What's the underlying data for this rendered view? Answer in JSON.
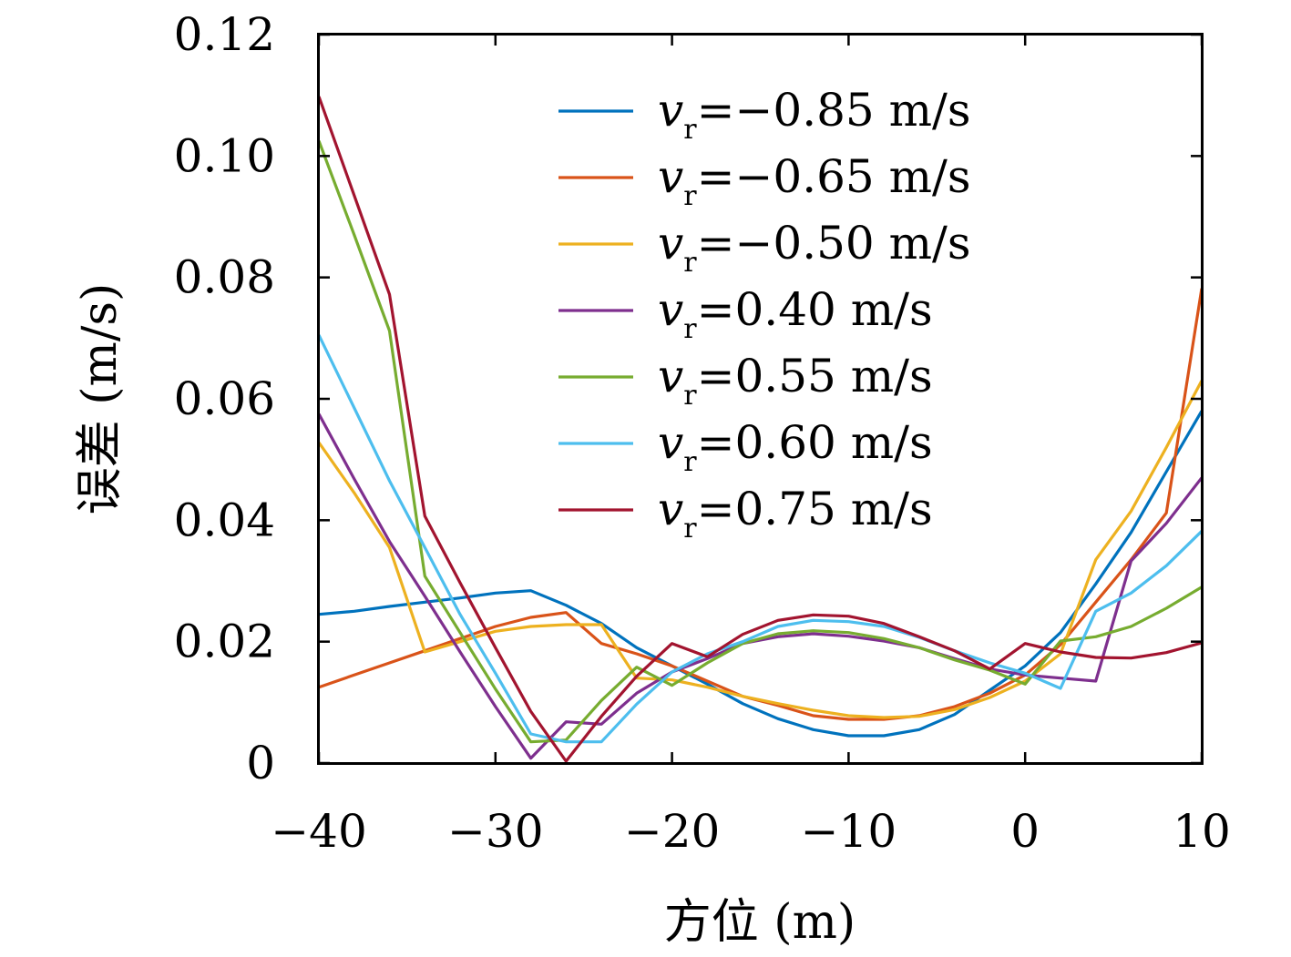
{
  "chart_data": {
    "type": "line",
    "xlabel": "方位 (m)",
    "ylabel": "误差 (m/s)",
    "xlim": [
      -40,
      10
    ],
    "ylim": [
      0,
      0.12
    ],
    "xticks": [
      -40,
      -30,
      -20,
      -10,
      0,
      10
    ],
    "xtick_labels": [
      "−40",
      "−30",
      "−20",
      "−10",
      "0",
      "10"
    ],
    "yticks": [
      0,
      0.02,
      0.04,
      0.06,
      0.08,
      0.1,
      0.12
    ],
    "ytick_labels": [
      "0",
      "0.02",
      "0.04",
      "0.06",
      "0.08",
      "0.10",
      "0.12"
    ],
    "grid": false,
    "legend_position": "top-right",
    "legend_variable": "v",
    "legend_subscript": "r",
    "series": [
      {
        "name": "=−0.85 m/s",
        "color": "#0072BD",
        "x": [
          -40,
          -38,
          -36,
          -34,
          -32,
          -30,
          -28,
          -26,
          -24,
          -22,
          -20,
          -18,
          -16,
          -14,
          -12,
          -10,
          -8,
          -6,
          -4,
          -2,
          0,
          2,
          4,
          6,
          8,
          10
        ],
        "y": [
          0.0245,
          0.025,
          0.0258,
          0.0265,
          0.0272,
          0.028,
          0.0284,
          0.026,
          0.023,
          0.019,
          0.016,
          0.013,
          0.0098,
          0.0073,
          0.0055,
          0.0045,
          0.0045,
          0.0055,
          0.008,
          0.012,
          0.016,
          0.0215,
          0.0295,
          0.038,
          0.048,
          0.058
        ]
      },
      {
        "name": "=−0.65 m/s",
        "color": "#D95319",
        "x": [
          -40,
          -38,
          -36,
          -34,
          -32,
          -30,
          -28,
          -26,
          -24,
          -22,
          -20,
          -18,
          -16,
          -14,
          -12,
          -10,
          -8,
          -6,
          -4,
          -2,
          0,
          2,
          4,
          6,
          8,
          10
        ],
        "y": [
          0.0125,
          0.0145,
          0.0165,
          0.0185,
          0.0205,
          0.0225,
          0.024,
          0.0248,
          0.0197,
          0.018,
          0.016,
          0.0135,
          0.011,
          0.0095,
          0.0078,
          0.0072,
          0.0072,
          0.0078,
          0.0093,
          0.0115,
          0.0145,
          0.0195,
          0.0265,
          0.0335,
          0.0412,
          0.0782
        ]
      },
      {
        "name": "=−0.50 m/s",
        "color": "#EDB120",
        "x": [
          -40,
          -38,
          -36,
          -34,
          -32,
          -30,
          -28,
          -26,
          -24,
          -22,
          -20,
          -18,
          -16,
          -14,
          -12,
          -10,
          -8,
          -6,
          -4,
          -2,
          0,
          2,
          4,
          6,
          8,
          10
        ],
        "y": [
          0.0528,
          0.0445,
          0.0355,
          0.0183,
          0.02,
          0.0217,
          0.0225,
          0.0228,
          0.0228,
          0.014,
          0.0137,
          0.0125,
          0.011,
          0.0098,
          0.0087,
          0.0078,
          0.0075,
          0.0077,
          0.0088,
          0.0108,
          0.0135,
          0.018,
          0.0335,
          0.0415,
          0.052,
          0.063
        ]
      },
      {
        "name": "=0.40 m/s",
        "color": "#7E2F8E",
        "x": [
          -40,
          -38,
          -36,
          -34,
          -32,
          -30,
          -28,
          -26,
          -24,
          -22,
          -20,
          -18,
          -16,
          -14,
          -12,
          -10,
          -8,
          -6,
          -4,
          -2,
          0,
          2,
          4,
          6,
          8,
          10
        ],
        "y": [
          0.0575,
          0.0468,
          0.0365,
          0.0275,
          0.0183,
          0.0093,
          0.0008,
          0.0068,
          0.0064,
          0.0115,
          0.015,
          0.0172,
          0.0197,
          0.0208,
          0.0213,
          0.0209,
          0.0201,
          0.019,
          0.0172,
          0.0155,
          0.0145,
          0.014,
          0.0135,
          0.0333,
          0.0395,
          0.047
        ]
      },
      {
        "name": "=0.55 m/s",
        "color": "#77AC30",
        "x": [
          -40,
          -38,
          -36,
          -34,
          -32,
          -30,
          -28,
          -26,
          -24,
          -22,
          -20,
          -18,
          -16,
          -14,
          -12,
          -10,
          -8,
          -6,
          -4,
          -2,
          0,
          2,
          4,
          6,
          8,
          10
        ],
        "y": [
          0.1025,
          0.087,
          0.0712,
          0.0308,
          0.0215,
          0.0122,
          0.0035,
          0.0038,
          0.0103,
          0.0158,
          0.0128,
          0.0165,
          0.0197,
          0.0213,
          0.0218,
          0.0215,
          0.0205,
          0.019,
          0.017,
          0.0153,
          0.013,
          0.0201,
          0.0208,
          0.0225,
          0.0255,
          0.029
        ]
      },
      {
        "name": "=0.60 m/s",
        "color": "#4DBEEE",
        "x": [
          -40,
          -38,
          -36,
          -34,
          -32,
          -30,
          -28,
          -26,
          -24,
          -22,
          -20,
          -18,
          -16,
          -14,
          -12,
          -10,
          -8,
          -6,
          -4,
          -2,
          0,
          2,
          4,
          6,
          8,
          10
        ],
        "y": [
          0.0705,
          0.0585,
          0.0465,
          0.0355,
          0.0245,
          0.0148,
          0.0048,
          0.0035,
          0.0035,
          0.0097,
          0.015,
          0.018,
          0.02,
          0.0225,
          0.0235,
          0.0233,
          0.0225,
          0.0207,
          0.0185,
          0.0165,
          0.0148,
          0.0123,
          0.025,
          0.028,
          0.0325,
          0.0382
        ]
      },
      {
        "name": "=0.75 m/s",
        "color": "#A2142F",
        "x": [
          -40,
          -38,
          -36,
          -34,
          -32,
          -30,
          -28,
          -26,
          -24,
          -22,
          -20,
          -18,
          -16,
          -14,
          -12,
          -10,
          -8,
          -6,
          -4,
          -2,
          0,
          2,
          4,
          6,
          8,
          10
        ],
        "y": [
          0.1098,
          0.0935,
          0.0772,
          0.0407,
          0.0297,
          0.019,
          0.0085,
          0.0003,
          0.0077,
          0.0143,
          0.0197,
          0.0175,
          0.0212,
          0.0235,
          0.0244,
          0.0242,
          0.023,
          0.0208,
          0.0185,
          0.0155,
          0.0197,
          0.0183,
          0.0174,
          0.0173,
          0.0182,
          0.0198
        ]
      }
    ]
  }
}
